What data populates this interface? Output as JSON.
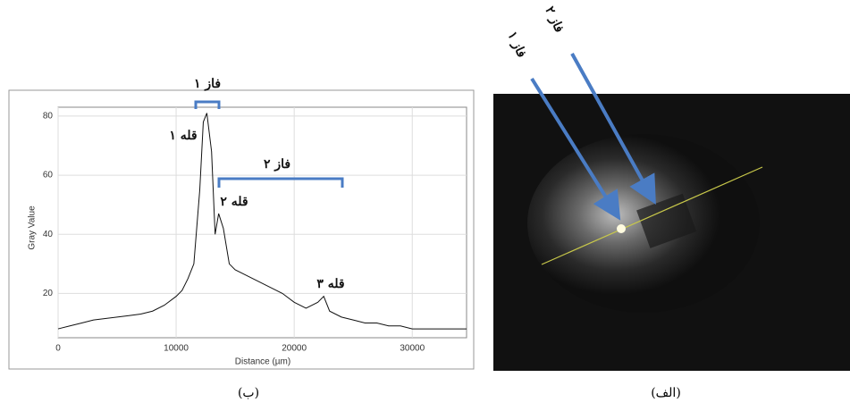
{
  "chart_data": {
    "type": "line",
    "x_label": "Distance (µm)",
    "y_label": "Gray Value",
    "x": [
      0,
      1000,
      2000,
      3000,
      4000,
      5000,
      6000,
      7000,
      8000,
      9000,
      10000,
      10500,
      11000,
      11500,
      12000,
      12300,
      12600,
      13000,
      13300,
      13600,
      14000,
      14500,
      15000,
      16000,
      17000,
      18000,
      19000,
      20000,
      21000,
      22000,
      22500,
      23000,
      24000,
      25000,
      26000,
      27000,
      28000,
      29000,
      30000,
      32000,
      34000,
      34600
    ],
    "series": [
      {
        "name": "Gray Value",
        "color": "#111111",
        "values": [
          8,
          9,
          10,
          11,
          11.5,
          12,
          12.5,
          13,
          14,
          16,
          19,
          21,
          25,
          30,
          55,
          78,
          81,
          68,
          40,
          47,
          42,
          30,
          28,
          26,
          24,
          22,
          20,
          17,
          15,
          17,
          19,
          14,
          12,
          11,
          10,
          10,
          9,
          9,
          8,
          8,
          8,
          8
        ]
      }
    ],
    "xlim": [
      0,
      34600
    ],
    "ylim": [
      5,
      83
    ],
    "xticks": [
      0,
      10000,
      20000,
      30000
    ],
    "yticks": [
      20,
      40,
      60,
      80
    ],
    "grid": true,
    "annotations": [
      "قله ۱",
      "قله ۲",
      "قله ۳",
      "فاز ۱",
      "فاز ۲"
    ],
    "caption": "(ب)"
  },
  "image": {
    "labels": [
      "فاز ۱",
      "فاز ۲"
    ],
    "caption": "(الف)"
  }
}
